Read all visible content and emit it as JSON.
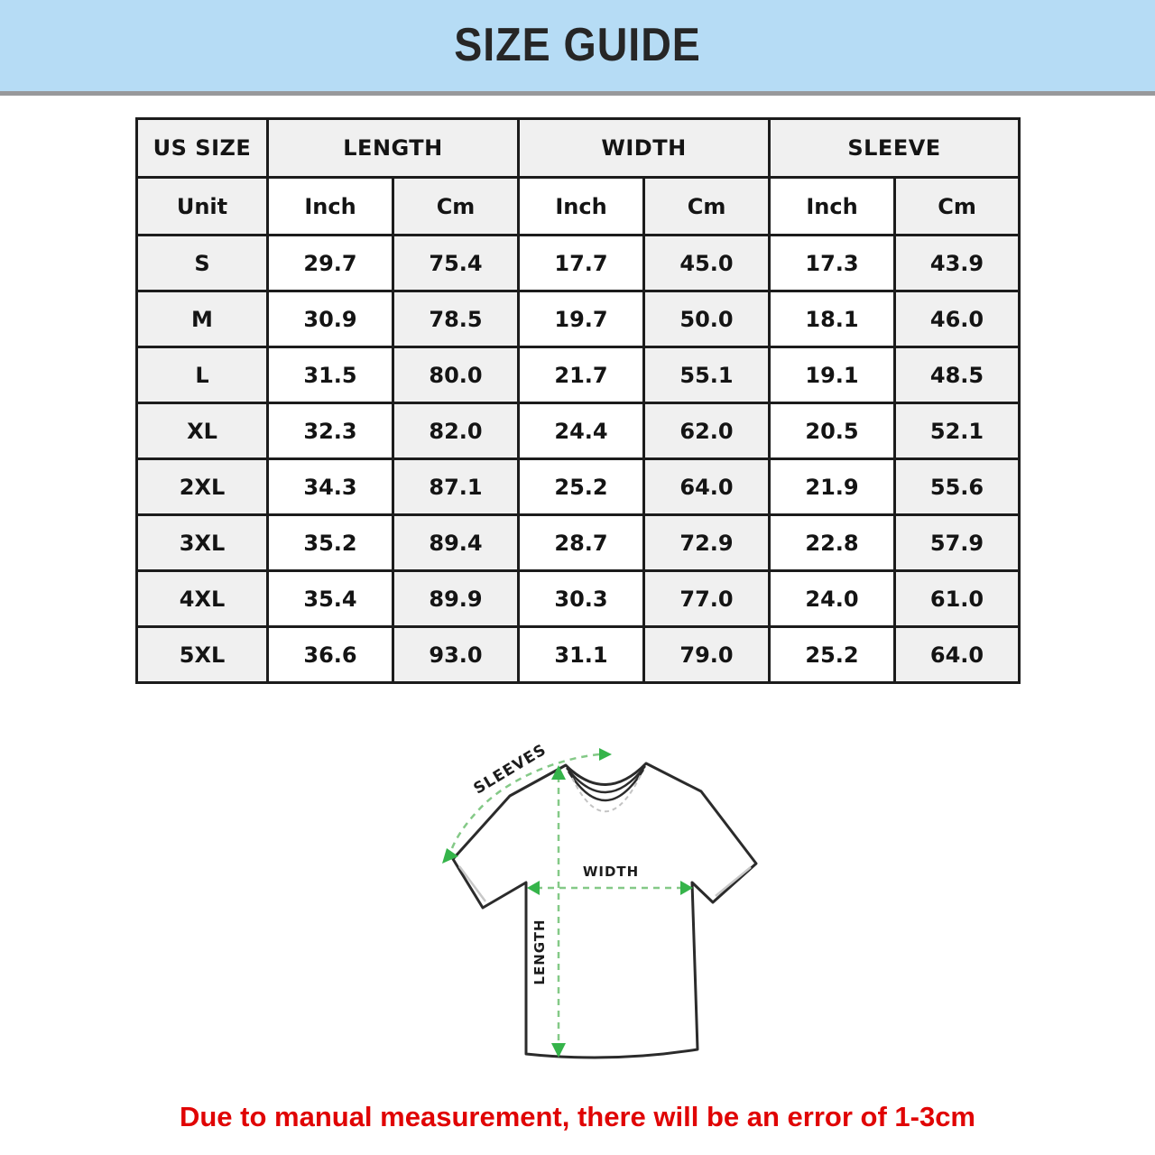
{
  "header": {
    "title": "SIZE GUIDE"
  },
  "table": {
    "groups": [
      {
        "label": "US SIZE"
      },
      {
        "label": "LENGTH"
      },
      {
        "label": "WIDTH"
      },
      {
        "label": "SLEEVE"
      }
    ],
    "unit_row": [
      "Unit",
      "Inch",
      "Cm",
      "Inch",
      "Cm",
      "Inch",
      "Cm"
    ],
    "rows": [
      {
        "size": "S",
        "values": [
          "29.7",
          "75.4",
          "17.7",
          "45.0",
          "17.3",
          "43.9"
        ]
      },
      {
        "size": "M",
        "values": [
          "30.9",
          "78.5",
          "19.7",
          "50.0",
          "18.1",
          "46.0"
        ]
      },
      {
        "size": "L",
        "values": [
          "31.5",
          "80.0",
          "21.7",
          "55.1",
          "19.1",
          "48.5"
        ]
      },
      {
        "size": "XL",
        "values": [
          "32.3",
          "82.0",
          "24.4",
          "62.0",
          "20.5",
          "52.1"
        ]
      },
      {
        "size": "2XL",
        "values": [
          "34.3",
          "87.1",
          "25.2",
          "64.0",
          "21.9",
          "55.6"
        ]
      },
      {
        "size": "3XL",
        "values": [
          "35.2",
          "89.4",
          "28.7",
          "72.9",
          "22.8",
          "57.9"
        ]
      },
      {
        "size": "4XL",
        "values": [
          "35.4",
          "89.9",
          "30.3",
          "77.0",
          "24.0",
          "61.0"
        ]
      },
      {
        "size": "5XL",
        "values": [
          "36.6",
          "93.0",
          "31.1",
          "79.0",
          "25.2",
          "64.0"
        ]
      }
    ]
  },
  "diagram": {
    "labels": {
      "sleeves": "SLEEVES",
      "width": "WIDTH",
      "length": "LENGTH"
    },
    "arrow_color": "#35b44a",
    "dash_color": "#84c987"
  },
  "footer": {
    "note": "Due to manual measurement, there will be an error of 1-3cm",
    "note_color": "#e00404"
  },
  "colors": {
    "banner_bg": "#b6dcf5",
    "cell_gray": "#f0f0f0",
    "border": "#1c1c1c"
  }
}
